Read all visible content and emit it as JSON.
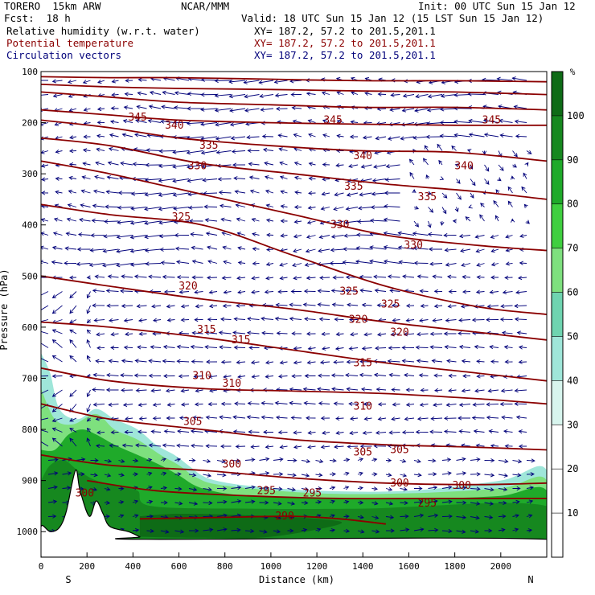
{
  "header": {
    "model": "TORERO  15km ARW",
    "center": "NCAR/MMM",
    "init": "Init: 00 UTC Sun 15 Jan 12",
    "fcst": "Fcst:  18 h",
    "valid": "Valid: 18 UTC Sun 15 Jan 12 (15 LST Sun 15 Jan 12)",
    "fields": [
      {
        "label": "Relative humidity (w.r.t. water)",
        "xy": "XY= 187.2, 57.2 to 201.5,201.1",
        "color": "#000000"
      },
      {
        "label": "Potential temperature",
        "xy": "XY= 187.2, 57.2 to 201.5,201.1",
        "color": "#8b0000"
      },
      {
        "label": "Circulation vectors",
        "xy": "XY= 187.2, 57.2 to 201.5,201.1",
        "color": "#00007a"
      }
    ]
  },
  "chart_data": {
    "type": "heatmap",
    "title": "Relative humidity (w.r.t. water)",
    "xlabel": "Distance (km)",
    "ylabel": "Pressure (hPa)",
    "xlim": [
      0,
      2200
    ],
    "ylim": [
      1050,
      100
    ],
    "xticks": [
      "0",
      "200",
      "400",
      "600",
      "800",
      "1000",
      "1200",
      "1400",
      "1600",
      "1800",
      "2000"
    ],
    "yticks": [
      "100",
      "200",
      "300",
      "400",
      "500",
      "600",
      "700",
      "800",
      "900",
      "1000"
    ],
    "x_end_labels": {
      "left": "S",
      "right": "N"
    },
    "colorbar": {
      "unit": "%",
      "levels": [
        10,
        20,
        30,
        40,
        50,
        60,
        70,
        80,
        90,
        100
      ],
      "colors": [
        "#ffffff",
        "#ffffff",
        "#ffffff",
        "#d8f5ee",
        "#9fe6d9",
        "#6fd4b0",
        "#7ee07e",
        "#3fcf3f",
        "#1faa2a",
        "#16881f",
        "#0e6b16"
      ]
    },
    "rh_regions": [
      {
        "level": 40,
        "points": [
          [
            0,
            650
          ],
          [
            40,
            690
          ],
          [
            80,
            760
          ],
          [
            160,
            780
          ],
          [
            240,
            760
          ],
          [
            320,
            780
          ],
          [
            420,
            800
          ],
          [
            500,
            830
          ],
          [
            580,
            850
          ],
          [
            640,
            870
          ],
          [
            700,
            890
          ],
          [
            760,
            900
          ],
          [
            900,
            910
          ],
          [
            1200,
            920
          ],
          [
            1600,
            920
          ],
          [
            2000,
            900
          ],
          [
            2200,
            880
          ],
          [
            2200,
            1050
          ],
          [
            0,
            1050
          ]
        ]
      },
      {
        "level": 60,
        "points": [
          [
            0,
            720
          ],
          [
            60,
            780
          ],
          [
            140,
            790
          ],
          [
            240,
            770
          ],
          [
            320,
            800
          ],
          [
            420,
            820
          ],
          [
            520,
            850
          ],
          [
            600,
            870
          ],
          [
            680,
            895
          ],
          [
            800,
            910
          ],
          [
            1200,
            925
          ],
          [
            1600,
            925
          ],
          [
            2000,
            915
          ],
          [
            2200,
            900
          ],
          [
            2200,
            1050
          ],
          [
            0,
            1050
          ]
        ]
      },
      {
        "level": 80,
        "points": [
          [
            0,
            840
          ],
          [
            60,
            840
          ],
          [
            120,
            810
          ],
          [
            180,
            800
          ],
          [
            240,
            810
          ],
          [
            320,
            830
          ],
          [
            420,
            850
          ],
          [
            520,
            870
          ],
          [
            600,
            890
          ],
          [
            700,
            915
          ],
          [
            900,
            930
          ],
          [
            1300,
            935
          ],
          [
            1700,
            935
          ],
          [
            2000,
            930
          ],
          [
            2200,
            920
          ],
          [
            2200,
            1050
          ],
          [
            0,
            1050
          ]
        ]
      },
      {
        "level": 90,
        "points": [
          [
            0,
            900
          ],
          [
            40,
            870
          ],
          [
            100,
            860
          ],
          [
            160,
            880
          ],
          [
            240,
            900
          ],
          [
            330,
            910
          ],
          [
            420,
            920
          ],
          [
            480,
            950
          ],
          [
            900,
            955
          ],
          [
            1400,
            955
          ],
          [
            2200,
            950
          ],
          [
            2200,
            1050
          ],
          [
            0,
            1050
          ]
        ]
      },
      {
        "level": 100,
        "points": [
          [
            430,
            970
          ],
          [
            600,
            965
          ],
          [
            900,
            968
          ],
          [
            1200,
            975
          ],
          [
            1300,
            985
          ],
          [
            1000,
            1010
          ],
          [
            700,
            1012
          ],
          [
            430,
            1010
          ]
        ]
      }
    ],
    "terrain": [
      [
        0,
        1050
      ],
      [
        0,
        990
      ],
      [
        40,
        1000
      ],
      [
        80,
        992
      ],
      [
        110,
        960
      ],
      [
        150,
        880
      ],
      [
        170,
        920
      ],
      [
        210,
        970
      ],
      [
        240,
        940
      ],
      [
        270,
        965
      ],
      [
        300,
        990
      ],
      [
        380,
        1000
      ],
      [
        430,
        1010
      ],
      [
        460,
        1015
      ],
      [
        2200,
        1015
      ],
      [
        2200,
        1050
      ]
    ],
    "theta_contours": [
      {
        "value": 345,
        "points": [
          [
            0,
            110
          ],
          [
            300,
            112
          ],
          [
            600,
            112
          ],
          [
            1000,
            115
          ],
          [
            1400,
            118
          ],
          [
            1800,
            118
          ],
          [
            2200,
            120
          ]
        ]
      },
      {
        "value": 345,
        "points": [
          [
            0,
            125
          ],
          [
            300,
            130
          ],
          [
            600,
            133
          ],
          [
            1000,
            135
          ],
          [
            1400,
            138
          ],
          [
            1800,
            140
          ],
          [
            2200,
            145
          ]
        ]
      },
      {
        "value": 345,
        "points": [
          [
            0,
            140
          ],
          [
            300,
            150
          ],
          [
            600,
            160
          ],
          [
            1000,
            165
          ],
          [
            1400,
            170
          ],
          [
            1800,
            170
          ],
          [
            2200,
            175
          ]
        ]
      },
      {
        "value": 345,
        "points": [
          [
            0,
            175
          ],
          [
            300,
            185
          ],
          [
            600,
            195
          ],
          [
            1000,
            200
          ],
          [
            1400,
            203
          ],
          [
            1800,
            205
          ],
          [
            2200,
            205
          ]
        ]
      },
      {
        "value": 340,
        "points": [
          [
            0,
            195
          ],
          [
            300,
            210
          ],
          [
            600,
            230
          ],
          [
            1000,
            245
          ],
          [
            1400,
            255
          ],
          [
            1800,
            258
          ],
          [
            2200,
            275
          ]
        ]
      },
      {
        "value": 335,
        "points": [
          [
            0,
            230
          ],
          [
            300,
            245
          ],
          [
            700,
            280
          ],
          [
            1100,
            300
          ],
          [
            1500,
            320
          ],
          [
            1900,
            335
          ],
          [
            2200,
            350
          ]
        ]
      },
      {
        "value": 330,
        "points": [
          [
            0,
            275
          ],
          [
            300,
            300
          ],
          [
            700,
            340
          ],
          [
            1100,
            380
          ],
          [
            1500,
            420
          ],
          [
            1900,
            440
          ],
          [
            2200,
            450
          ]
        ]
      },
      {
        "value": 325,
        "points": [
          [
            0,
            360
          ],
          [
            300,
            380
          ],
          [
            700,
            400
          ],
          [
            1100,
            460
          ],
          [
            1500,
            520
          ],
          [
            1900,
            560
          ],
          [
            2200,
            575
          ]
        ]
      },
      {
        "value": 320,
        "points": [
          [
            0,
            500
          ],
          [
            300,
            520
          ],
          [
            700,
            545
          ],
          [
            1100,
            565
          ],
          [
            1500,
            590
          ],
          [
            1900,
            610
          ],
          [
            2200,
            625
          ]
        ]
      },
      {
        "value": 315,
        "points": [
          [
            0,
            590
          ],
          [
            300,
            600
          ],
          [
            700,
            620
          ],
          [
            1100,
            645
          ],
          [
            1500,
            670
          ],
          [
            1900,
            690
          ],
          [
            2200,
            705
          ]
        ]
      },
      {
        "value": 310,
        "points": [
          [
            0,
            680
          ],
          [
            300,
            705
          ],
          [
            700,
            720
          ],
          [
            1100,
            725
          ],
          [
            1500,
            730
          ],
          [
            1900,
            740
          ],
          [
            2200,
            750
          ]
        ]
      },
      {
        "value": 305,
        "points": [
          [
            0,
            750
          ],
          [
            300,
            780
          ],
          [
            700,
            800
          ],
          [
            1100,
            820
          ],
          [
            1500,
            830
          ],
          [
            1900,
            835
          ],
          [
            2200,
            840
          ]
        ]
      },
      {
        "value": 300,
        "points": [
          [
            0,
            850
          ],
          [
            300,
            870
          ],
          [
            700,
            880
          ],
          [
            1100,
            895
          ],
          [
            1500,
            905
          ],
          [
            1900,
            908
          ],
          [
            2200,
            905
          ]
        ]
      },
      {
        "value": 295,
        "points": [
          [
            200,
            900
          ],
          [
            500,
            920
          ],
          [
            900,
            930
          ],
          [
            1300,
            935
          ],
          [
            1700,
            935
          ],
          [
            2200,
            935
          ]
        ]
      },
      {
        "value": 290,
        "points": [
          [
            430,
            975
          ],
          [
            800,
            972
          ],
          [
            1100,
            970
          ],
          [
            1300,
            975
          ],
          [
            1500,
            985
          ]
        ]
      }
    ],
    "theta_labels": [
      {
        "text": "345",
        "x": 420,
        "p": 190
      },
      {
        "text": "340",
        "x": 580,
        "p": 205
      },
      {
        "text": "335",
        "x": 730,
        "p": 245
      },
      {
        "text": "330",
        "x": 680,
        "p": 285
      },
      {
        "text": "325",
        "x": 610,
        "p": 385
      },
      {
        "text": "320",
        "x": 640,
        "p": 520
      },
      {
        "text": "315",
        "x": 720,
        "p": 605
      },
      {
        "text": "315",
        "x": 870,
        "p": 625
      },
      {
        "text": "310",
        "x": 700,
        "p": 695
      },
      {
        "text": "310",
        "x": 830,
        "p": 710
      },
      {
        "text": "305",
        "x": 660,
        "p": 785
      },
      {
        "text": "300",
        "x": 830,
        "p": 868
      },
      {
        "text": "295",
        "x": 980,
        "p": 920
      },
      {
        "text": "295",
        "x": 1180,
        "p": 925
      },
      {
        "text": "290",
        "x": 1060,
        "p": 970
      },
      {
        "text": "300",
        "x": 190,
        "p": 925
      },
      {
        "text": "345",
        "x": 1270,
        "p": 195
      },
      {
        "text": "345",
        "x": 1960,
        "p": 195
      },
      {
        "text": "340",
        "x": 1400,
        "p": 265
      },
      {
        "text": "340",
        "x": 1840,
        "p": 285
      },
      {
        "text": "335",
        "x": 1360,
        "p": 325
      },
      {
        "text": "335",
        "x": 1680,
        "p": 345
      },
      {
        "text": "330",
        "x": 1300,
        "p": 400
      },
      {
        "text": "330",
        "x": 1620,
        "p": 440
      },
      {
        "text": "325",
        "x": 1340,
        "p": 530
      },
      {
        "text": "325",
        "x": 1520,
        "p": 555
      },
      {
        "text": "320",
        "x": 1380,
        "p": 585
      },
      {
        "text": "320",
        "x": 1560,
        "p": 610
      },
      {
        "text": "315",
        "x": 1400,
        "p": 670
      },
      {
        "text": "310",
        "x": 1400,
        "p": 755
      },
      {
        "text": "305",
        "x": 1400,
        "p": 845
      },
      {
        "text": "305",
        "x": 1560,
        "p": 840
      },
      {
        "text": "300",
        "x": 1560,
        "p": 905
      },
      {
        "text": "300",
        "x": 1830,
        "p": 910
      },
      {
        "text": "295",
        "x": 1680,
        "p": 945
      }
    ]
  }
}
